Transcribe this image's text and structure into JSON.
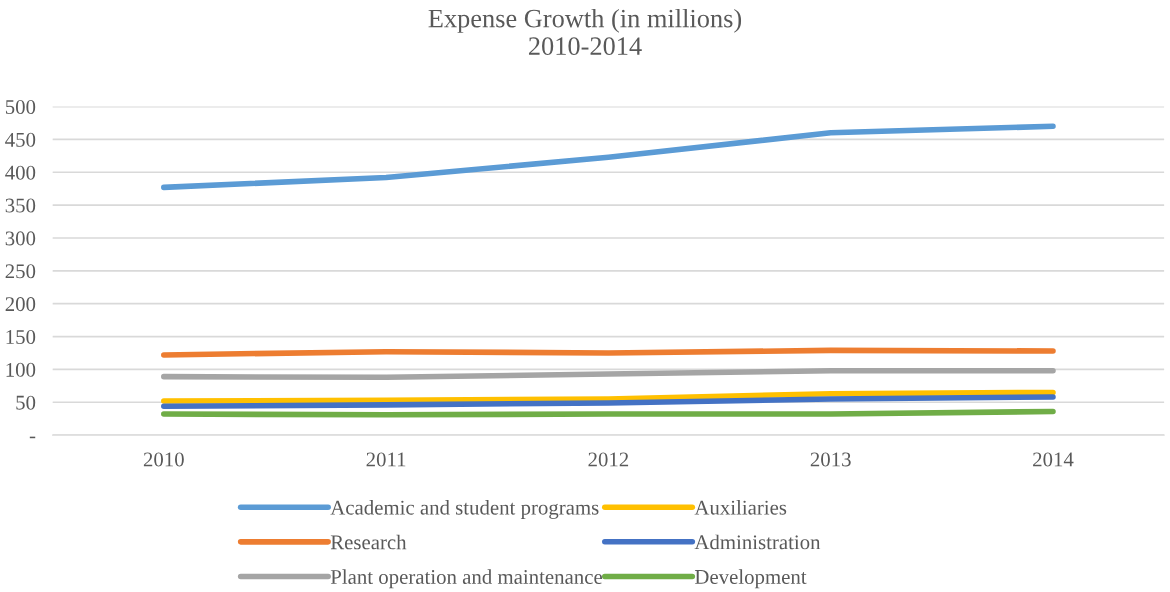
{
  "chart_data": {
    "type": "line",
    "title": "Expense Growth (in millions)\n2010-2014",
    "categories": [
      "2010",
      "2011",
      "2012",
      "2013",
      "2014"
    ],
    "series": [
      {
        "name": "Academic and student programs",
        "color": "#5b9bd5",
        "values": [
          377,
          392,
          423,
          460,
          470
        ]
      },
      {
        "name": "Research",
        "color": "#ed7d31",
        "values": [
          122,
          127,
          125,
          129,
          128
        ]
      },
      {
        "name": "Plant operation and maintenance",
        "color": "#a5a5a5",
        "values": [
          89,
          88,
          93,
          98,
          98
        ]
      },
      {
        "name": "Auxiliaries",
        "color": "#ffc000",
        "values": [
          52,
          53,
          55,
          63,
          65
        ]
      },
      {
        "name": "Administration",
        "color": "#4472c4",
        "values": [
          44,
          46,
          49,
          55,
          58
        ]
      },
      {
        "name": "Development",
        "color": "#70ad47",
        "values": [
          32,
          31,
          32,
          32,
          36
        ]
      }
    ],
    "ylim": [
      0,
      500
    ],
    "yticks": [
      {
        "value": 0,
        "label": "-"
      },
      50,
      100,
      150,
      200,
      250,
      300,
      350,
      400,
      450,
      500
    ],
    "grid": "y",
    "legend": "bottom",
    "marker": "none",
    "line_style": "solid"
  }
}
